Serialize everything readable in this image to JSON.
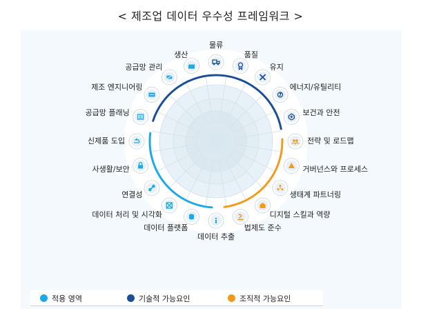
{
  "title": "< 제조업 데이터 우수성 프레임워크 >",
  "colors": {
    "application": "#1da9e6",
    "technical": "#1b4e96",
    "organizational": "#f39a1c"
  },
  "items": [
    {
      "label": "물류",
      "icon": "truck-icon",
      "group": "technical"
    },
    {
      "label": "품질",
      "icon": "badge-icon",
      "group": "technical"
    },
    {
      "label": "유지",
      "icon": "tools-icon",
      "group": "technical"
    },
    {
      "label": "에너지/유틸리티",
      "icon": "energy-icon",
      "group": "technical"
    },
    {
      "label": "보건과 안전",
      "icon": "safety-icon",
      "group": "technical"
    },
    {
      "label": "전략 및 로드맵",
      "icon": "strategy-icon",
      "group": "organizational"
    },
    {
      "label": "거버넌스와 프로세스",
      "icon": "governance-icon",
      "group": "organizational"
    },
    {
      "label": "생태계 파트너링",
      "icon": "ecosystem-icon",
      "group": "organizational"
    },
    {
      "label": "디지털 스킬과 역량",
      "icon": "skills-icon",
      "group": "organizational"
    },
    {
      "label": "법제도 준수",
      "icon": "compliance-icon",
      "group": "organizational"
    },
    {
      "label": "데이터 추출",
      "icon": "extract-icon",
      "group": "application"
    },
    {
      "label": "데이터 플랫폼",
      "icon": "database-icon",
      "group": "application"
    },
    {
      "label": "데이터 처리 및 시각화",
      "icon": "visualize-icon",
      "group": "application"
    },
    {
      "label": "연결성",
      "icon": "link-icon",
      "group": "application"
    },
    {
      "label": "사생활/보안",
      "icon": "lock-icon",
      "group": "application"
    },
    {
      "label": "신제품 도입",
      "icon": "product-icon",
      "group": "application"
    },
    {
      "label": "공급망 플래닝",
      "icon": "planning-icon",
      "group": "application"
    },
    {
      "label": "제조 엔지니어링",
      "icon": "engineering-icon",
      "group": "application"
    },
    {
      "label": "공급망 관리",
      "icon": "supply-icon",
      "group": "application"
    },
    {
      "label": "생산",
      "icon": "factory-icon",
      "group": "application"
    }
  ],
  "legend": [
    {
      "label": "적용 영역",
      "group": "application"
    },
    {
      "label": "기술적 가능요인",
      "group": "technical"
    },
    {
      "label": "조직적 가능요인",
      "group": "organizational"
    }
  ]
}
